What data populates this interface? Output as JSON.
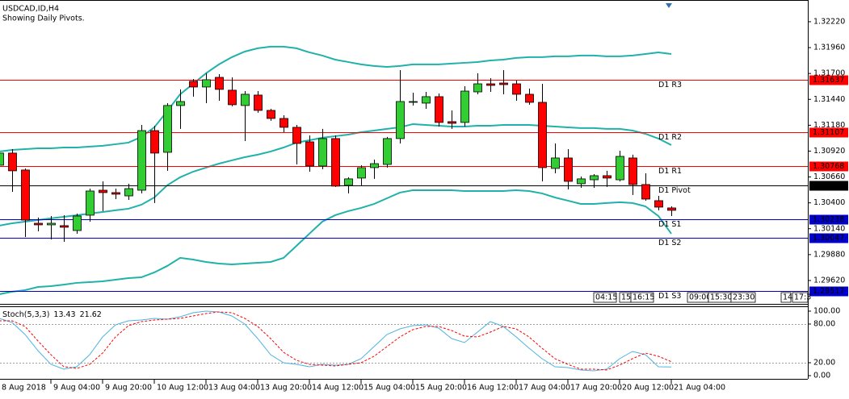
{
  "chart_data": [
    {
      "type": "candlestick",
      "title": "USDCAD,ID,H4",
      "subtitle": "Showing Daily Pivots.",
      "categories": [
        "8 Aug 2018",
        null,
        null,
        null,
        "9 Aug 04:00",
        null,
        null,
        null,
        "9 Aug 20:00",
        null,
        null,
        null,
        "10 Aug 12:00",
        null,
        null,
        null,
        "13 Aug 04:00",
        null,
        null,
        null,
        "13 Aug 20:00",
        null,
        null,
        null,
        "14 Aug 12:00",
        null,
        null,
        null,
        "15 Aug 04:00",
        null,
        null,
        null,
        "15 Aug 20:00",
        null,
        null,
        null,
        "16 Aug 12:00",
        null,
        null,
        null,
        "17 Aug 04:00",
        null,
        null,
        null,
        "17 Aug 20:00",
        null,
        null,
        null,
        "20 Aug 12:00",
        null,
        null,
        null,
        "21 Aug 04:00"
      ],
      "open": [
        1.30778,
        1.309,
        1.3073,
        1.30195,
        1.30179,
        1.30171,
        1.30122,
        1.30276,
        1.30527,
        1.30503,
        1.3047,
        1.30527,
        1.31126,
        1.30908,
        1.31378,
        1.31621,
        1.31564,
        1.31661,
        1.31532,
        1.31378,
        1.31483,
        1.31329,
        1.31248,
        1.31159,
        1.31013,
        1.3077,
        1.31046,
        1.30576,
        1.30649,
        1.30754,
        1.30786,
        1.31046,
        1.3141,
        1.31402,
        1.31467,
        1.31216,
        1.31208,
        1.31515,
        1.31596,
        1.31604,
        1.31596,
        1.31491,
        1.3141,
        1.30746,
        1.30851,
        1.30592,
        1.30632,
        1.30673,
        1.30632,
        1.30851,
        1.30584,
        1.30422,
        1.30349
      ],
      "high": [
        1.3094,
        1.3094,
        1.30746,
        1.30252,
        1.30268,
        1.30276,
        1.30292,
        1.30543,
        1.30616,
        1.30543,
        1.30592,
        1.31183,
        1.31175,
        1.31402,
        1.3154,
        1.31645,
        1.31702,
        1.31693,
        1.31661,
        1.31523,
        1.31523,
        1.31345,
        1.3128,
        1.31183,
        1.31078,
        1.31143,
        1.31078,
        1.30657,
        1.30778,
        1.30835,
        1.31062,
        1.31734,
        1.31507,
        1.31515,
        1.31499,
        1.31329,
        1.31572,
        1.31702,
        1.31653,
        1.31734,
        1.31629,
        1.31548,
        1.31596,
        1.30997,
        1.3094,
        1.30665,
        1.30689,
        1.30722,
        1.30924,
        1.30884,
        1.30697,
        1.3047,
        1.30365
      ],
      "low": [
        1.30738,
        1.30511,
        1.30057,
        1.30114,
        1.30033,
        1.30009,
        1.3009,
        1.30211,
        1.30317,
        1.30438,
        1.3043,
        1.30495,
        1.30398,
        1.30722,
        1.31143,
        1.31467,
        1.31402,
        1.31426,
        1.3137,
        1.31021,
        1.31305,
        1.31224,
        1.3111,
        1.30786,
        1.30713,
        1.30738,
        1.3056,
        1.30495,
        1.30576,
        1.30641,
        1.30754,
        1.30997,
        1.31378,
        1.31345,
        1.31167,
        1.31143,
        1.31167,
        1.31491,
        1.31515,
        1.31491,
        1.31426,
        1.31386,
        1.30616,
        1.30697,
        1.30535,
        1.30551,
        1.30551,
        1.3056,
        1.30616,
        1.30479,
        1.30422,
        1.30325,
        1.30268
      ],
      "close": [
        1.309,
        1.30722,
        1.30227,
        1.30179,
        1.30195,
        1.30155,
        1.30268,
        1.30519,
        1.30503,
        1.30487,
        1.30543,
        1.31126,
        1.309,
        1.31378,
        1.31418,
        1.31564,
        1.31637,
        1.3154,
        1.31386,
        1.31491,
        1.31329,
        1.31248,
        1.31159,
        1.30997,
        1.3077,
        1.31046,
        1.30568,
        1.30641,
        1.30754,
        1.30794,
        1.31046,
        1.31418,
        1.31418,
        1.31467,
        1.31208,
        1.31199,
        1.31523,
        1.31596,
        1.3158,
        1.31588,
        1.31491,
        1.3141,
        1.30754,
        1.30851,
        1.30616,
        1.30641,
        1.30673,
        1.30649,
        1.30867,
        1.30584,
        1.30438,
        1.30357,
        1.30325
      ],
      "up_color": "#32cd32",
      "down_color": "#ff0000",
      "bands": {
        "color": "#20b2aa",
        "upper": [
          1.30916,
          1.30932,
          1.3094,
          1.30948,
          1.30948,
          1.30956,
          1.30956,
          1.30965,
          1.30973,
          1.30989,
          1.31005,
          1.31062,
          1.31159,
          1.31321,
          1.31491,
          1.31596,
          1.31702,
          1.31791,
          1.31864,
          1.3192,
          1.31953,
          1.31969,
          1.31969,
          1.31953,
          1.31912,
          1.3188,
          1.31839,
          1.31815,
          1.31791,
          1.31775,
          1.31766,
          1.31775,
          1.31791,
          1.31791,
          1.31791,
          1.31799,
          1.31807,
          1.31815,
          1.31831,
          1.31839,
          1.31856,
          1.31864,
          1.31864,
          1.31872,
          1.31872,
          1.3188,
          1.3188,
          1.31872,
          1.31872,
          1.3188,
          1.31896,
          1.31912,
          1.31896
        ],
        "middle": [
          1.30171,
          1.30195,
          1.30211,
          1.30227,
          1.30244,
          1.3026,
          1.30276,
          1.30292,
          1.30308,
          1.30325,
          1.30341,
          1.30381,
          1.30454,
          1.30576,
          1.30657,
          1.30713,
          1.30754,
          1.30794,
          1.30827,
          1.30859,
          1.30884,
          1.30916,
          1.30956,
          1.31005,
          1.31029,
          1.31054,
          1.3107,
          1.31086,
          1.3111,
          1.31126,
          1.31143,
          1.31159,
          1.31191,
          1.31183,
          1.31175,
          1.31167,
          1.31167,
          1.31175,
          1.31175,
          1.31183,
          1.31183,
          1.31183,
          1.31175,
          1.31167,
          1.31159,
          1.31151,
          1.31151,
          1.31143,
          1.31143,
          1.31126,
          1.31094,
          1.31046,
          1.30981
        ],
        "lower": [
          1.29482,
          1.29507,
          1.29523,
          1.29555,
          1.29563,
          1.29578,
          1.29596,
          1.29604,
          1.29612,
          1.29628,
          1.29644,
          1.29652,
          1.29701,
          1.29766,
          1.29847,
          1.2983,
          1.29806,
          1.2979,
          1.29782,
          1.2979,
          1.29798,
          1.29806,
          1.29847,
          1.29968,
          1.3009,
          1.30211,
          1.30276,
          1.30317,
          1.30349,
          1.30389,
          1.30446,
          1.30503,
          1.30527,
          1.30527,
          1.30527,
          1.30527,
          1.30519,
          1.30519,
          1.30519,
          1.30519,
          1.30527,
          1.30519,
          1.30495,
          1.30454,
          1.30422,
          1.30389,
          1.30389,
          1.30398,
          1.30406,
          1.30398,
          1.30365,
          1.30268,
          1.3009
        ]
      },
      "pivots": [
        {
          "name": "D1 R3",
          "value": 1.31637,
          "color": "#ff0000"
        },
        {
          "name": "D1 R2",
          "value": 1.31107,
          "color": "#ff0000"
        },
        {
          "name": "D1 R1",
          "value": 1.30768,
          "color": "#ff0000"
        },
        {
          "name": "D1 Pivot",
          "value": 1.30577,
          "color": "#000000"
        },
        {
          "name": "D1 S1",
          "value": 1.30238,
          "color": "#0000c8"
        },
        {
          "name": "D1 S2",
          "value": 1.30047,
          "color": "#0000c8"
        },
        {
          "name": "D1 S3",
          "value": 1.29517,
          "color": "#0000c8"
        }
      ],
      "session_labels": [
        "04:15",
        "15:",
        "16:15",
        "09:00",
        "15:30",
        "23:30",
        "14",
        "17:3"
      ],
      "ylim": [
        1.29393,
        1.32422
      ],
      "yticks": [
        {
          "value": 1.3222,
          "label": "1.32220"
        },
        {
          "value": 1.3196,
          "label": "1.31960"
        },
        {
          "value": 1.317,
          "label": "1.31700"
        },
        {
          "value": 1.3144,
          "label": "1.31440"
        },
        {
          "value": 1.3118,
          "label": "1.31180"
        },
        {
          "value": 1.3092,
          "label": "1.30920"
        },
        {
          "value": 1.3066,
          "label": "1.30660"
        },
        {
          "value": 1.304,
          "label": "1.30400"
        },
        {
          "value": 1.3014,
          "label": "1.30140"
        },
        {
          "value": 1.2988,
          "label": "1.29880"
        },
        {
          "value": 1.2962,
          "label": "1.29620"
        }
      ]
    },
    {
      "type": "line",
      "title": "Stoch(5,3,3)",
      "series": [
        {
          "color": "#4fb3df",
          "values": [
            88.75,
            82.5,
            63.75,
            38.75,
            17.5,
            10,
            13.75,
            32.5,
            60,
            78.75,
            85,
            86.25,
            88.75,
            87.5,
            91.25,
            97.5,
            100,
            98.75,
            92.5,
            80,
            57.5,
            32.5,
            20,
            17.5,
            13.75,
            17.5,
            16.25,
            17.5,
            26.25,
            45,
            63.75,
            72.5,
            77.5,
            78.75,
            73.75,
            57.5,
            51.25,
            67.5,
            83.75,
            76.25,
            60,
            42.5,
            26.25,
            13.75,
            12.5,
            8.75,
            7.5,
            10,
            26.25,
            37.5,
            32.5,
            13.75,
            13.43
          ]
        },
        {
          "color": "#ff0000",
          "dashed": true,
          "values": [
            85,
            85,
            76.25,
            53.75,
            32.5,
            13.75,
            11.25,
            17.5,
            35,
            60,
            77.5,
            83.75,
            86.25,
            87.5,
            88.75,
            92.5,
            96.25,
            98.75,
            97.5,
            88.75,
            76.25,
            57.5,
            36.25,
            23.75,
            17.5,
            16.25,
            15,
            17.5,
            20,
            30,
            45,
            60,
            71.25,
            76.25,
            76.25,
            70,
            61.25,
            60,
            67.5,
            76.25,
            72.5,
            60,
            42.5,
            26.25,
            17.5,
            10,
            10,
            8.75,
            16.25,
            26.25,
            35,
            30,
            21.62
          ]
        }
      ],
      "levels": [
        80,
        20
      ],
      "ylim": [
        -5,
        107.5
      ],
      "yticks": [
        {
          "value": 100,
          "label": "100.00"
        },
        {
          "value": 80,
          "label": "80.00"
        },
        {
          "value": 20,
          "label": "20.00"
        },
        {
          "value": 0,
          "label": "0.00"
        }
      ]
    }
  ]
}
